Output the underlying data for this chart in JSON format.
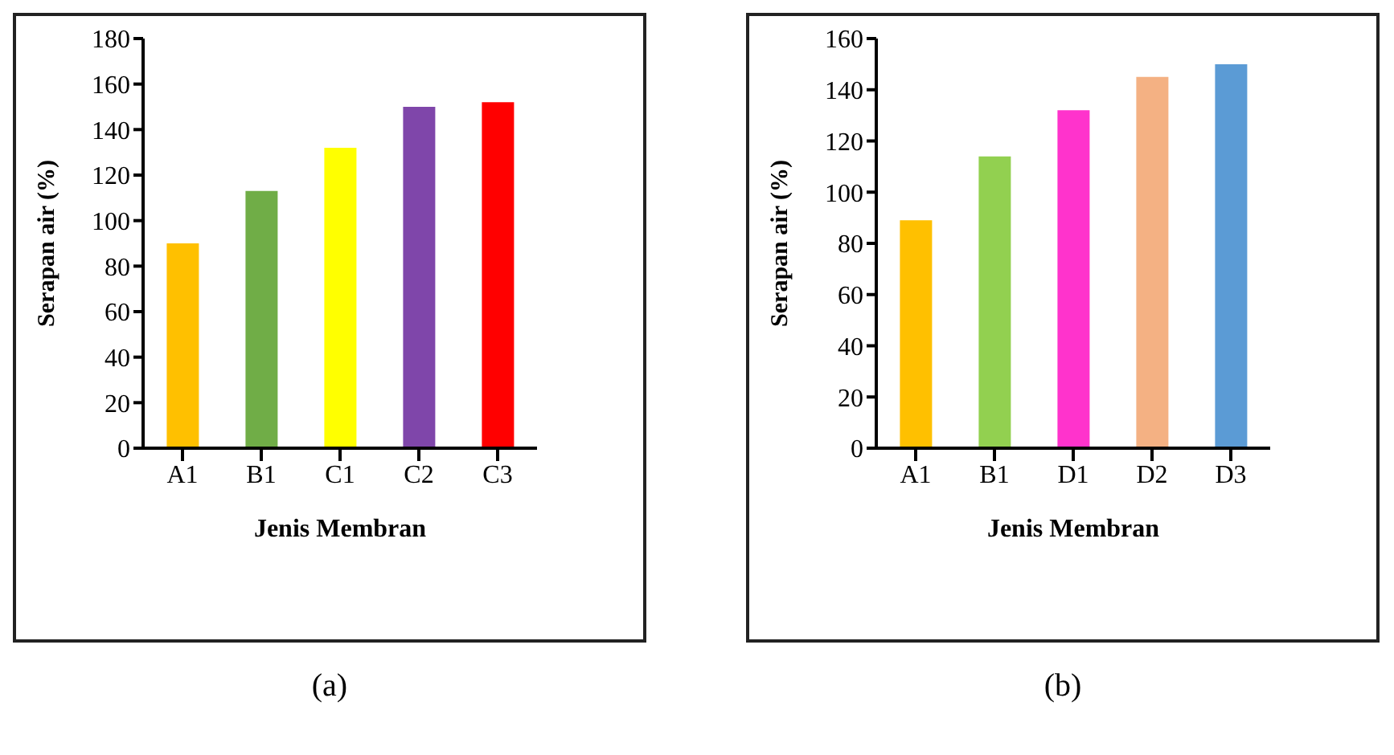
{
  "chart_data": [
    {
      "type": "bar",
      "xlabel": "Jenis Membran",
      "ylabel": "Serapan air (%)",
      "categories": [
        "A1",
        "B1",
        "C1",
        "C2",
        "C3"
      ],
      "values": [
        90,
        113,
        132,
        150,
        152
      ],
      "colors": [
        "#ffc000",
        "#70ad47",
        "#ffff00",
        "#7f46aa",
        "#ff0000"
      ],
      "ylim": [
        0,
        180
      ],
      "yticks": [
        0,
        20,
        40,
        60,
        80,
        100,
        120,
        140,
        160,
        180
      ],
      "grid": false,
      "legend": false,
      "annotations": [
        "(a)"
      ]
    },
    {
      "type": "bar",
      "xlabel": "Jenis Membran",
      "ylabel": "Serapan air (%)",
      "categories": [
        "A1",
        "B1",
        "D1",
        "D2",
        "D3"
      ],
      "values": [
        89,
        114,
        132,
        145,
        150
      ],
      "colors": [
        "#ffc000",
        "#92d050",
        "#ff33cc",
        "#f4b183",
        "#5b9bd5"
      ],
      "ylim": [
        0,
        160
      ],
      "yticks": [
        0,
        20,
        40,
        60,
        80,
        100,
        120,
        140,
        160
      ],
      "grid": false,
      "legend": false,
      "annotations": [
        "(b)"
      ]
    }
  ]
}
